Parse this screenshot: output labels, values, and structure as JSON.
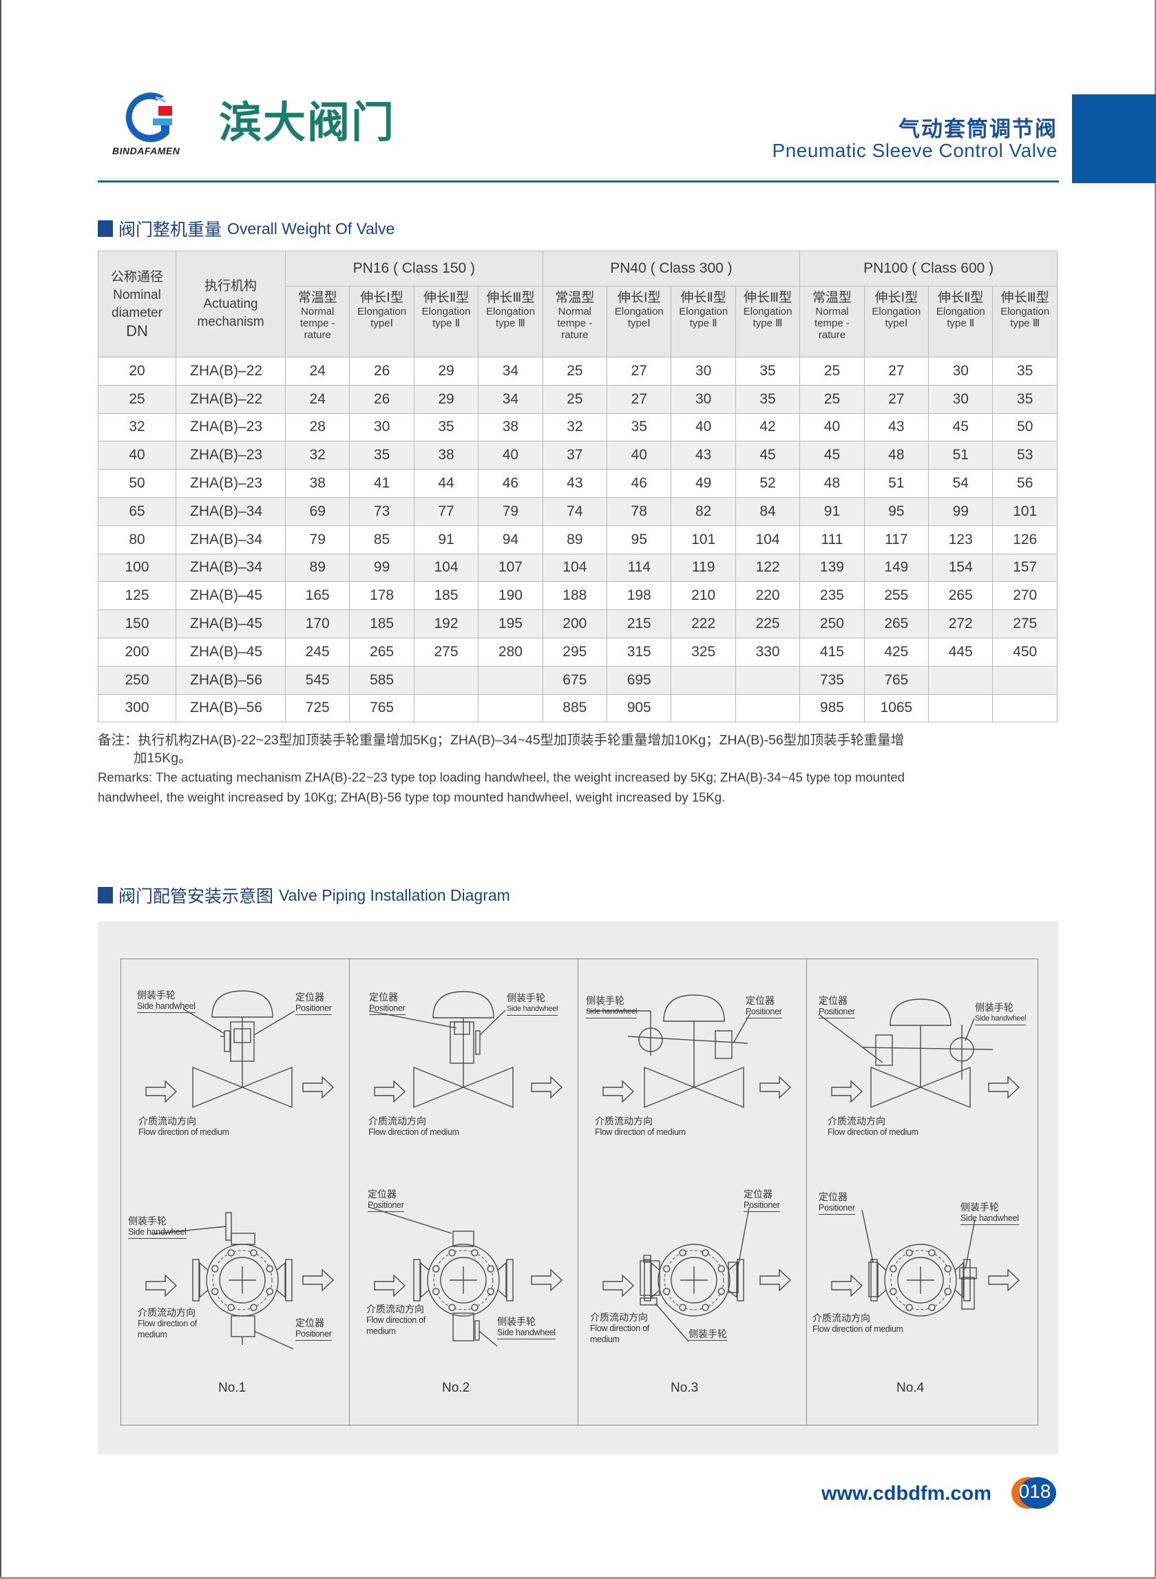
{
  "header": {
    "logo_text": "BINDAFAMEN",
    "brand": "滨大阀门",
    "title_cn": "气动套筒调节阀",
    "title_en": "Pneumatic Sleeve Control Valve",
    "accent_color": "#0b58a5"
  },
  "weight_section": {
    "title_cn": "阀门整机重量",
    "title_en": "Overall Weight Of Valve"
  },
  "table": {
    "dn_header": [
      "公称通径",
      "Nominal",
      "diameter",
      "DN"
    ],
    "act_header": [
      "执行机构",
      "Actuating",
      "mechanism"
    ],
    "groups": [
      "PN16 ( Class 150 )",
      "PN40 ( Class 300 )",
      "PN100 ( Class 600 )"
    ],
    "sub_headers": [
      [
        "常温型",
        "Normal",
        "tempe -",
        "rature"
      ],
      [
        "伸长Ⅰ型",
        "Elongation",
        "typeⅠ"
      ],
      [
        "伸长Ⅱ型",
        "Elongation",
        "type Ⅱ"
      ],
      [
        "伸长Ⅲ型",
        "Elongation",
        "type Ⅲ"
      ]
    ],
    "rows": [
      {
        "dn": "20",
        "act": "ZHA(B)–22",
        "v": [
          "24",
          "26",
          "29",
          "34",
          "25",
          "27",
          "30",
          "35",
          "25",
          "27",
          "30",
          "35"
        ]
      },
      {
        "dn": "25",
        "act": "ZHA(B)–22",
        "v": [
          "24",
          "26",
          "29",
          "34",
          "25",
          "27",
          "30",
          "35",
          "25",
          "27",
          "30",
          "35"
        ]
      },
      {
        "dn": "32",
        "act": "ZHA(B)–23",
        "v": [
          "28",
          "30",
          "35",
          "38",
          "32",
          "35",
          "40",
          "42",
          "40",
          "43",
          "45",
          "50"
        ]
      },
      {
        "dn": "40",
        "act": "ZHA(B)–23",
        "v": [
          "32",
          "35",
          "38",
          "40",
          "37",
          "40",
          "43",
          "45",
          "45",
          "48",
          "51",
          "53"
        ]
      },
      {
        "dn": "50",
        "act": "ZHA(B)–23",
        "v": [
          "38",
          "41",
          "44",
          "46",
          "43",
          "46",
          "49",
          "52",
          "48",
          "51",
          "54",
          "56"
        ]
      },
      {
        "dn": "65",
        "act": "ZHA(B)–34",
        "v": [
          "69",
          "73",
          "77",
          "79",
          "74",
          "78",
          "82",
          "84",
          "91",
          "95",
          "99",
          "101"
        ]
      },
      {
        "dn": "80",
        "act": "ZHA(B)–34",
        "v": [
          "79",
          "85",
          "91",
          "94",
          "89",
          "95",
          "101",
          "104",
          "111",
          "117",
          "123",
          "126"
        ]
      },
      {
        "dn": "100",
        "act": "ZHA(B)–34",
        "v": [
          "89",
          "99",
          "104",
          "107",
          "104",
          "114",
          "119",
          "122",
          "139",
          "149",
          "154",
          "157"
        ]
      },
      {
        "dn": "125",
        "act": "ZHA(B)–45",
        "v": [
          "165",
          "178",
          "185",
          "190",
          "188",
          "198",
          "210",
          "220",
          "235",
          "255",
          "265",
          "270"
        ]
      },
      {
        "dn": "150",
        "act": "ZHA(B)–45",
        "v": [
          "170",
          "185",
          "192",
          "195",
          "200",
          "215",
          "222",
          "225",
          "250",
          "265",
          "272",
          "275"
        ]
      },
      {
        "dn": "200",
        "act": "ZHA(B)–45",
        "v": [
          "245",
          "265",
          "275",
          "280",
          "295",
          "315",
          "325",
          "330",
          "415",
          "425",
          "445",
          "450"
        ]
      },
      {
        "dn": "250",
        "act": "ZHA(B)–56",
        "v": [
          "545",
          "585",
          "",
          "",
          "675",
          "695",
          "",
          "",
          "735",
          "765",
          "",
          ""
        ]
      },
      {
        "dn": "300",
        "act": "ZHA(B)–56",
        "v": [
          "725",
          "765",
          "",
          "",
          "885",
          "905",
          "",
          "",
          "985",
          "1065",
          "",
          ""
        ]
      }
    ]
  },
  "remarks": {
    "cn": [
      "备注：执行机构ZHA(B)-22~23型加顶装手轮重量增加5Kg；ZHA(B)–34~45型加顶装手轮重量增加10Kg；ZHA(B)-56型加顶装手轮重量增",
      "加15Kg。"
    ],
    "en": [
      "Remarks: The actuating mechanism ZHA(B)-22~23 type top loading handwheel, the weight increased by 5Kg; ZHA(B)-34~45 type top mounted",
      "handwheel, the weight increased by 10Kg; ZHA(B)-56 type top mounted handwheel, weight increased by 15Kg."
    ]
  },
  "diagram_section": {
    "title_cn": "阀门配管安装示意图",
    "title_en": "Valve Piping Installation Diagram",
    "labels": {
      "side_handwheel_cn": "侧装手轮",
      "side_handwheel_en": "Side handwheel",
      "positioner_cn": "定位器",
      "positioner_en": "Positioner",
      "flow_cn": "介质流动方向",
      "flow_en": "Flow direction of medium",
      "flow_en_1": "Flow direction of",
      "flow_en_2": "medium"
    },
    "panels": [
      "No.1",
      "No.2",
      "No.3",
      "No.4"
    ]
  },
  "footer": {
    "url": "www.cdbdfm.com",
    "page": "018"
  }
}
